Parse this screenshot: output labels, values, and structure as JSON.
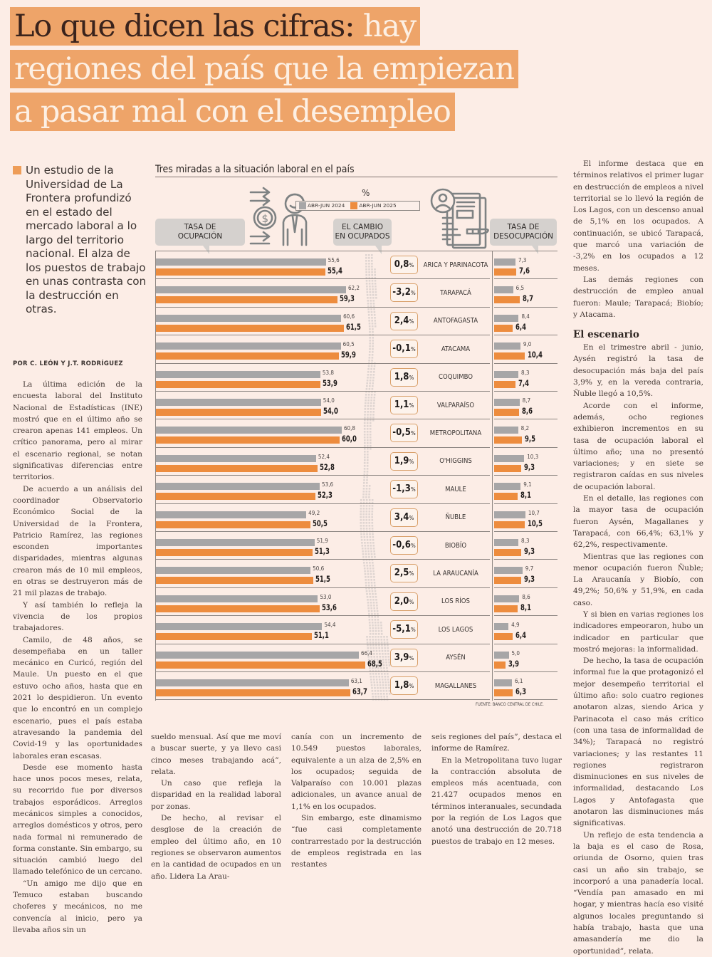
{
  "headline": {
    "lines": [
      "Lo que dicen las cifras:",
      "hay",
      "regiones del país que la empiezan",
      "a pasar mal con el desempleo"
    ]
  },
  "lead": "Un estudio de la Universidad de La Frontera profundizó en el estado del mercado laboral a lo largo del territorio nacional. El alza de los puestos de trabajo en unas contrasta con la destrucción en otras.",
  "byline": "POR C. LEÓN Y J.T. RODRÍGUEZ",
  "body_left": [
    "La última edición de la encuesta laboral del Instituto Nacional de Estadísticas (INE) mostró que en el último año se crearon apenas 141 empleos. Un crítico panorama, pero al mirar el escenario regional, se notan significativas diferencias entre territorios.",
    "De acuerdo a un análisis del coordinador Observatorio Económico Social de la Universidad de la Frontera, Patricio Ramírez, las regiones esconden importantes disparidades, mientras algunas crearon más de 10 mil empleos, en otras se destruyeron más de 21 mil plazas de trabajo.",
    "Y así también lo refleja la vivencia de los propios trabajadores.",
    "Camilo, de 48 años, se desempeñaba en un taller mecánico en Curicó, región del Maule. Un puesto en el que estuvo ocho años, hasta que en 2021 lo despidieron. Un evento que lo encontró en un complejo escenario, pues el país estaba atravesando la pandemia del Covid-19 y las oportunidades laborales eran escasas.",
    "Desde ese momento hasta hace unos pocos meses, relata, su recorrido fue por diversos trabajos esporádicos. Arreglos mecánicos simples a conocidos, arreglos domésticos y otros, pero nada formal ni remunerado de forma constante. Sin embargo, su situación cambió luego del llamado telefónico de un cercano.",
    "“Un amigo me dijo que en Temuco estaban buscando choferes y mecánicos, no me convencía al inicio, pero ya llevaba años sin un"
  ],
  "body_mid1": [
    "sueldo mensual. Así que me moví a buscar suerte, y ya llevo casi cinco meses trabajando acá”, relata.",
    "Un caso que refleja la disparidad en la realidad laboral por zonas.",
    "De hecho, al revisar el desglose de la creación de empleo del último año, en 10 regiones se observaron aumentos en la cantidad de ocupados en un año. Lidera La Arau-"
  ],
  "body_mid2": [
    "canía con un incremento de 10.549 puestos laborales, equivalente a un alza de 2,5% en los ocupados; seguida de Valparaíso con 10.001 plazas adicionales, un avance anual de 1,1% en los ocupados.",
    "Sin embargo, este dinamismo “fue casi completamente contrarrestado por la destrucción de empleos registrada en las restantes"
  ],
  "body_mid3": [
    "seis regiones del país”, destaca el informe de Ramírez.",
    "En la Metropolitana tuvo lugar la contracción absoluta de empleos más acentuada, con 21.427 ocupados menos en términos interanuales, secundada por la región de Los Lagos que anotó una destrucción de 20.718 puestos de trabajo en 12 meses."
  ],
  "body_right": [
    "El informe destaca que en términos relativos el primer lugar en destrucción de empleos a nivel territorial se lo llevó la región de Los Lagos, con un descenso anual de 5,1% en los ocupados. A continuación, se ubicó Tarapacá, que marcó una variación de -3,2% en los ocupados a 12 meses.",
    "Las demás regiones con destrucción de empleo anual fueron: Maule; Tarapacá; Biobío; y Atacama."
  ],
  "subhead": "El escenario",
  "body_right2": [
    "En el trimestre abril - junio, Aysén registró la tasa de desocupación más baja del país 3,9% y, en la vereda contraria, Ñuble llegó a 10,5%.",
    "Acorde con el informe, además, ocho regiones exhibieron incrementos en su tasa de ocupación laboral el último año; una no presentó variaciones; y en siete se registraron caídas en sus niveles de ocupación laboral.",
    "En el detalle, las regiones con la mayor tasa de ocupación fueron Aysén, Magallanes y Tarapacá, con 66,4%; 63,1% y 62,2%, respectivamente.",
    "Mientras que las regiones con menor ocupación fueron Ñuble; La Araucanía y Biobío, con 49,2%; 50,6% y 51,9%, en cada caso.",
    "Y si bien en varias regiones los indicadores empeoraron, hubo un indicador en particular que mostró mejoras: la informalidad.",
    "De hecho, la tasa de ocupación informal fue la que protagonizó el mejor desempeño territorial el último año: solo cuatro regiones anotaron alzas, siendo Arica y Parinacota el caso más crítico (con una tasa de informalidad de 34%); Tarapacá no registró variaciones; y las restantes 11 regiones registraron disminuciones en sus niveles de informalidad, destacando Los Lagos y Antofagasta que anotaron las disminuciones más significativas.",
    "Un reflejo de esta tendencia a la baja es el caso de Rosa, oriunda de Osorno, quien tras casi un año sin trabajo, se incorporó a una panadería local. “Vendía pan amasado en mi hogar, y mientras hacía eso visité algunos locales preguntando si había trabajo, hasta que una amasandería me dio la oportunidad”, relata."
  ],
  "infographic": {
    "title": "Tres miradas a la situación laboral en el país",
    "unit": "%",
    "callout_occupation": [
      "TASA DE",
      "OCUPACIÓN"
    ],
    "callout_change": [
      "EL CAMBIO",
      "EN OCUPADOS"
    ],
    "callout_unemployment": [
      "TASA DE",
      "DESOCUPACIÓN"
    ],
    "source": "FUENTE: BANCO CENTRAL DE CHILE.",
    "icons": [
      "worker-money-icon",
      "resume-document-icon"
    ]
  },
  "chart_data": {
    "type": "bar",
    "title": "Tres miradas a la situación laboral en el país",
    "unit": "%",
    "legend": [
      "ABR-JUN 2024",
      "ABR-JUN 2025"
    ],
    "legend_placement": "top-center",
    "colors": {
      "2024": "#a7a6a7",
      "2025": "#ed8c3e",
      "change_border": "#d9a06a"
    },
    "categories": [
      "ARICA Y PARINACOTA",
      "TARAPACÁ",
      "ANTOFAGASTA",
      "ATACAMA",
      "COQUIMBO",
      "VALPARAÍSO",
      "METROPOLITANA",
      "O'HIGGINS",
      "MAULE",
      "ÑUBLE",
      "BIOBÍO",
      "LA ARAUCANÍA",
      "LOS RÍOS",
      "LOS LAGOS",
      "AYSÉN",
      "MAGALLANES"
    ],
    "series": [
      {
        "name": "Tasa de ocupación ABR-JUN 2024",
        "values": [
          "55,6",
          "62,2",
          "60,6",
          "60,5",
          "53,8",
          "54,0",
          "60,8",
          "52,4",
          "53,6",
          "49,2",
          "51,9",
          "50,6",
          "53,0",
          "54,4",
          "66,4",
          "63,1"
        ]
      },
      {
        "name": "Tasa de ocupación ABR-JUN 2025",
        "values": [
          "55,4",
          "59,3",
          "61,5",
          "59,9",
          "53,9",
          "54,0",
          "60,0",
          "52,8",
          "52,3",
          "50,5",
          "51,3",
          "51,5",
          "53,6",
          "51,1",
          "68,5",
          "63,7"
        ]
      },
      {
        "name": "El cambio en ocupados",
        "values": [
          "0,8",
          "-3,2",
          "2,4",
          "-0,1",
          "1,8",
          "1,1",
          "-0,5",
          "1,9",
          "-1,3",
          "3,4",
          "-0,6",
          "2,5",
          "2,0",
          "-5,1",
          "3,9",
          "1,8"
        ]
      },
      {
        "name": "Tasa de desocupación ABR-JUN 2024",
        "values": [
          "7,3",
          "6,5",
          "8,4",
          "9,0",
          "8,3",
          "8,7",
          "8,2",
          "10,3",
          "9,1",
          "10,7",
          "8,3",
          "9,7",
          "8,6",
          "4,9",
          "5,0",
          "6,1"
        ]
      },
      {
        "name": "Tasa de desocupación ABR-JUN 2025",
        "values": [
          "7,6",
          "8,7",
          "6,4",
          "10,4",
          "7,4",
          "8,6",
          "9,5",
          "9,3",
          "8,1",
          "10,5",
          "9,3",
          "9,3",
          "8,1",
          "6,4",
          "3,9",
          "6,3"
        ]
      }
    ],
    "pct_suffix": "%"
  }
}
